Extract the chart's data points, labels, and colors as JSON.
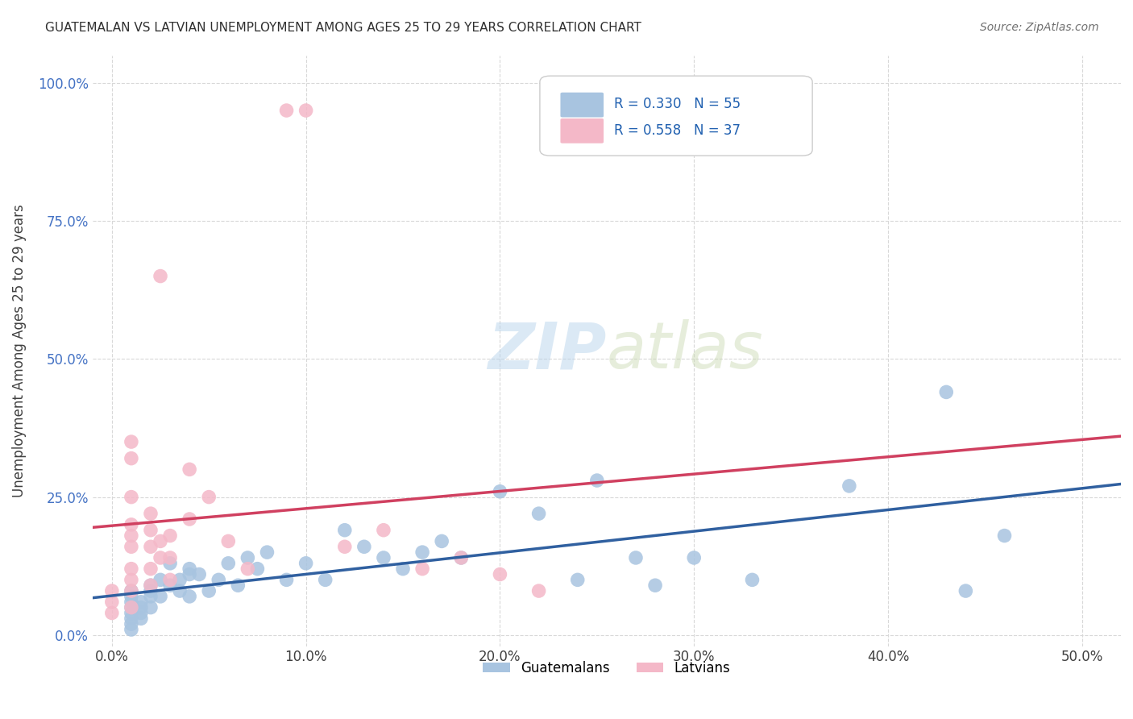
{
  "title": "GUATEMALAN VS LATVIAN UNEMPLOYMENT AMONG AGES 25 TO 29 YEARS CORRELATION CHART",
  "source": "Source: ZipAtlas.com",
  "xlabel_ticks": [
    "0.0%",
    "10.0%",
    "20.0%",
    "30.0%",
    "40.0%",
    "50.0%"
  ],
  "xlabel_tick_vals": [
    0.0,
    0.1,
    0.2,
    0.3,
    0.4,
    0.5
  ],
  "ylabel_ticks": [
    "0.0%",
    "25.0%",
    "50.0%",
    "75.0%",
    "100.0%"
  ],
  "ylabel_tick_vals": [
    0.0,
    0.25,
    0.5,
    0.75,
    1.0
  ],
  "xlim": [
    -0.01,
    0.52
  ],
  "ylim": [
    -0.02,
    1.05
  ],
  "watermark_zip": "ZIP",
  "watermark_atlas": "atlas",
  "legend_guatemalans": "Guatemalans",
  "legend_latvians": "Latvians",
  "r_guatemalans": "R = 0.330",
  "n_guatemalans": "N = 55",
  "r_latvians": "R = 0.558",
  "n_latvians": "N = 37",
  "guatemalan_color": "#a8c4e0",
  "latvian_color": "#f4b8c8",
  "guatemalan_line_color": "#3060a0",
  "latvian_line_color": "#d04060",
  "latvian_trend_dashed_color": "#c8c8c8",
  "grid_color": "#d8d8d8",
  "title_color": "#303030",
  "source_color": "#707070",
  "guatemalan_x": [
    0.01,
    0.01,
    0.01,
    0.01,
    0.01,
    0.01,
    0.01,
    0.01,
    0.015,
    0.015,
    0.015,
    0.015,
    0.02,
    0.02,
    0.02,
    0.02,
    0.025,
    0.025,
    0.03,
    0.03,
    0.035,
    0.035,
    0.04,
    0.04,
    0.04,
    0.045,
    0.05,
    0.055,
    0.06,
    0.065,
    0.07,
    0.075,
    0.08,
    0.09,
    0.1,
    0.11,
    0.12,
    0.13,
    0.14,
    0.15,
    0.16,
    0.17,
    0.18,
    0.2,
    0.22,
    0.24,
    0.25,
    0.27,
    0.28,
    0.3,
    0.33,
    0.38,
    0.43,
    0.44,
    0.46
  ],
  "guatemalan_y": [
    0.02,
    0.03,
    0.04,
    0.05,
    0.06,
    0.07,
    0.08,
    0.01,
    0.05,
    0.06,
    0.04,
    0.03,
    0.07,
    0.08,
    0.09,
    0.05,
    0.1,
    0.07,
    0.09,
    0.13,
    0.1,
    0.08,
    0.11,
    0.12,
    0.07,
    0.11,
    0.08,
    0.1,
    0.13,
    0.09,
    0.14,
    0.12,
    0.15,
    0.1,
    0.13,
    0.1,
    0.19,
    0.16,
    0.14,
    0.12,
    0.15,
    0.17,
    0.14,
    0.26,
    0.22,
    0.1,
    0.28,
    0.14,
    0.09,
    0.14,
    0.1,
    0.27,
    0.44,
    0.08,
    0.18
  ],
  "latvian_x": [
    0.0,
    0.0,
    0.0,
    0.01,
    0.01,
    0.01,
    0.01,
    0.01,
    0.01,
    0.01,
    0.01,
    0.01,
    0.01,
    0.02,
    0.02,
    0.02,
    0.02,
    0.02,
    0.025,
    0.025,
    0.025,
    0.03,
    0.03,
    0.03,
    0.04,
    0.04,
    0.05,
    0.06,
    0.07,
    0.09,
    0.1,
    0.12,
    0.14,
    0.16,
    0.18,
    0.2,
    0.22
  ],
  "latvian_y": [
    0.04,
    0.06,
    0.08,
    0.05,
    0.08,
    0.1,
    0.12,
    0.16,
    0.18,
    0.2,
    0.25,
    0.32,
    0.35,
    0.09,
    0.12,
    0.16,
    0.19,
    0.22,
    0.14,
    0.17,
    0.65,
    0.1,
    0.14,
    0.18,
    0.21,
    0.3,
    0.25,
    0.17,
    0.12,
    0.95,
    0.95,
    0.16,
    0.19,
    0.12,
    0.14,
    0.11,
    0.08
  ]
}
